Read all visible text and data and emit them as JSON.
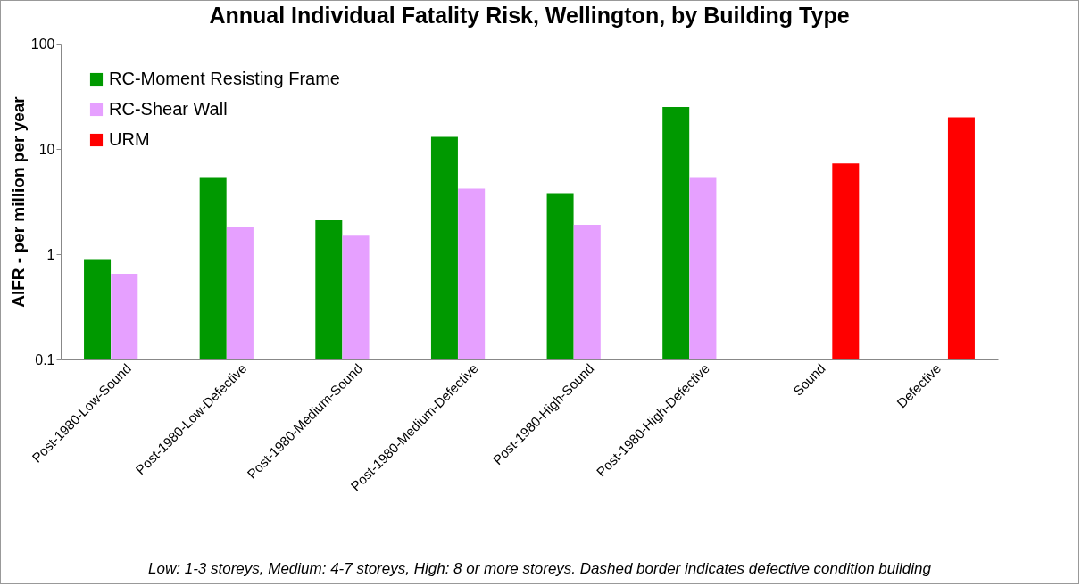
{
  "chart_data": {
    "type": "bar",
    "title": "Annual Individual Fatality Risk, Wellington, by Building Type",
    "ylabel": "AIFR - per million per year",
    "categories": [
      "Post-1980-Low-Sound",
      "Post-1980-Low-Defective",
      "Post-1980-Medium-Sound",
      "Post-1980-Medium-Defective",
      "Post-1980-High-Sound",
      "Post-1980-High-Defective",
      "Sound",
      "Defective"
    ],
    "series": [
      {
        "name": "RC-Moment Resisting Frame",
        "color": "#009900",
        "values": [
          0.9,
          5.3,
          2.1,
          13,
          3.8,
          25,
          null,
          null
        ]
      },
      {
        "name": "RC-Shear Wall",
        "color": "#e6a0ff",
        "values": [
          0.65,
          1.8,
          1.5,
          4.2,
          1.9,
          5.3,
          null,
          null
        ]
      },
      {
        "name": "URM",
        "color": "#ff0000",
        "values": [
          null,
          null,
          null,
          null,
          null,
          null,
          7.3,
          20
        ]
      }
    ],
    "log": true,
    "ylim": [
      0.1,
      100
    ],
    "yticks": [
      0.1,
      1,
      10,
      100
    ],
    "grid": false,
    "legend": "top left",
    "annotations": [
      "Low: 1-3 storeys,  Medium: 4-7 storeys,  High: 8 or more storeys.    Dashed border indicates defective condition building"
    ]
  }
}
